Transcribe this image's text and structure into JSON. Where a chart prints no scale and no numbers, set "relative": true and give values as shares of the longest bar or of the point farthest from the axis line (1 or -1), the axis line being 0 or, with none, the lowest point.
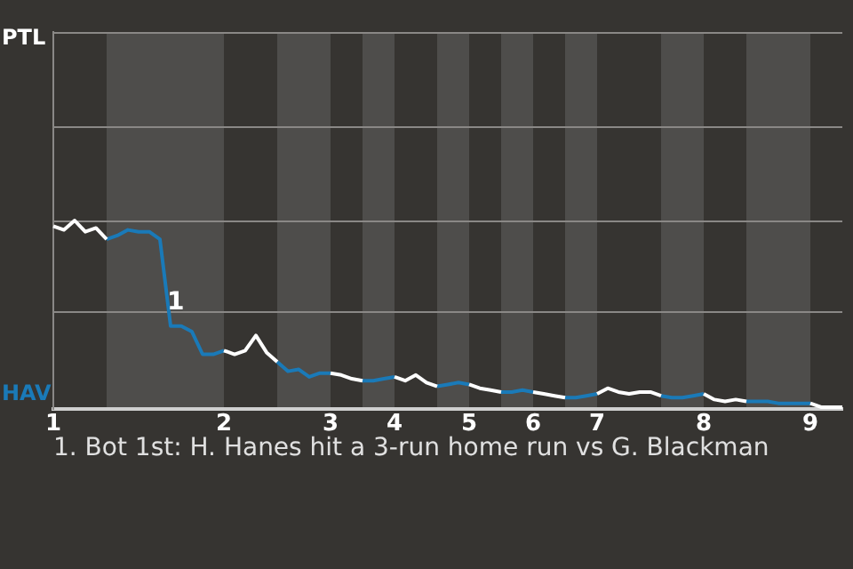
{
  "chart_data": {
    "type": "line",
    "relative": true,
    "categories": [
      "1",
      null,
      null,
      null,
      null,
      null,
      null,
      null,
      null,
      null,
      null,
      null,
      null,
      null,
      null,
      null,
      "2",
      null,
      null,
      null,
      null,
      null,
      null,
      null,
      null,
      null,
      "3",
      null,
      null,
      null,
      null,
      null,
      "4",
      null,
      null,
      null,
      null,
      null,
      null,
      "5",
      null,
      null,
      null,
      null,
      null,
      "6",
      null,
      null,
      null,
      null,
      null,
      "7",
      null,
      null,
      null,
      null,
      null,
      null,
      null,
      null,
      null,
      "8",
      null,
      null,
      null,
      null,
      null,
      null,
      null,
      null,
      null,
      "9",
      null,
      null,
      null
    ],
    "series": [
      {
        "color": "#ffffff",
        "values": [
          0.97,
          0.95,
          1,
          0.94,
          0.96,
          0.9,
          null,
          null,
          null,
          null,
          null,
          null,
          null,
          null,
          null,
          null,
          0.31,
          0.29,
          0.31,
          0.39,
          0.3,
          0.25,
          null,
          null,
          null,
          null,
          0.19,
          0.18,
          0.16,
          0.15,
          null,
          null,
          0.17,
          0.15,
          0.18,
          0.14,
          0.12,
          null,
          null,
          0.13,
          0.11,
          0.1,
          0.09,
          null,
          null,
          0.09,
          0.08,
          0.07,
          0.06,
          null,
          null,
          0.08,
          0.11,
          0.09,
          0.08,
          0.09,
          0.09,
          0.07,
          null,
          null,
          null,
          0.08,
          0.05,
          0.04,
          0.05,
          0.04,
          null,
          null,
          null,
          null,
          null,
          0.03,
          0.01,
          0.01,
          0.01
        ]
      },
      {
        "color": "#1a7ab8",
        "values": [
          null,
          null,
          null,
          null,
          null,
          0.9,
          0.92,
          0.95,
          0.94,
          0.94,
          0.9,
          0.44,
          0.44,
          0.41,
          0.29,
          0.29,
          0.31,
          null,
          null,
          null,
          null,
          0.25,
          0.2,
          0.21,
          0.17,
          0.19,
          0.19,
          null,
          null,
          0.15,
          0.15,
          0.16,
          0.17,
          null,
          null,
          null,
          0.12,
          0.13,
          0.14,
          0.13,
          null,
          null,
          0.09,
          0.09,
          0.1,
          0.09,
          null,
          null,
          0.06,
          0.06,
          0.07,
          0.08,
          null,
          null,
          null,
          null,
          null,
          0.07,
          0.06,
          0.06,
          0.07,
          0.08,
          null,
          null,
          null,
          0.04,
          0.04,
          0.04,
          0.03,
          0.03,
          0.03,
          0.03,
          null,
          null,
          null
        ]
      }
    ],
    "ref_lines": [
      {
        "axis": "y",
        "value": 0.52,
        "color": "#8a8886"
      }
    ],
    "annotations": [
      "PTL",
      "HAV",
      "1",
      "1. Bot 1st: H. Hanes hit a 3-run home run vs G. Blackman"
    ]
  }
}
